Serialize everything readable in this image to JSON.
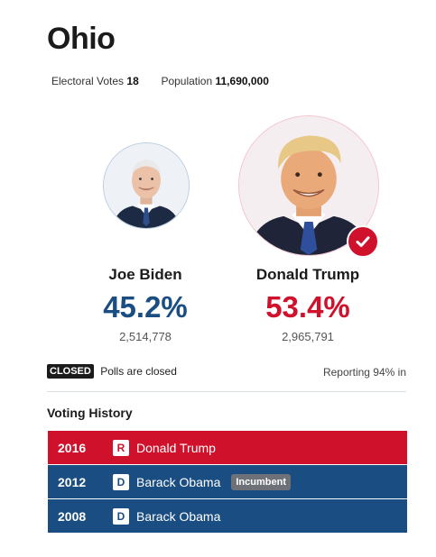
{
  "state": {
    "name": "Ohio"
  },
  "stats": {
    "electoral_label": "Electoral Votes",
    "electoral_value": "18",
    "population_label": "Population",
    "population_value": "11,690,000"
  },
  "candidates": [
    {
      "name": "Joe Biden",
      "percent": "45.2%",
      "votes": "2,514,778",
      "party_color": "#1a4e82",
      "winner": false
    },
    {
      "name": "Donald Trump",
      "percent": "53.4%",
      "votes": "2,965,791",
      "party_color": "#d0112b",
      "winner": true
    }
  ],
  "status": {
    "badge": "CLOSED",
    "text": "Polls are closed",
    "reporting": "Reporting 94% in"
  },
  "history": {
    "title": "Voting History",
    "rows": [
      {
        "year": "2016",
        "party": "R",
        "name": "Donald Trump",
        "badge": ""
      },
      {
        "year": "2012",
        "party": "D",
        "name": "Barack Obama",
        "badge": "Incumbent"
      },
      {
        "year": "2008",
        "party": "D",
        "name": "Barack Obama",
        "badge": ""
      }
    ]
  },
  "icons": {
    "winner": "checkmark-icon"
  }
}
